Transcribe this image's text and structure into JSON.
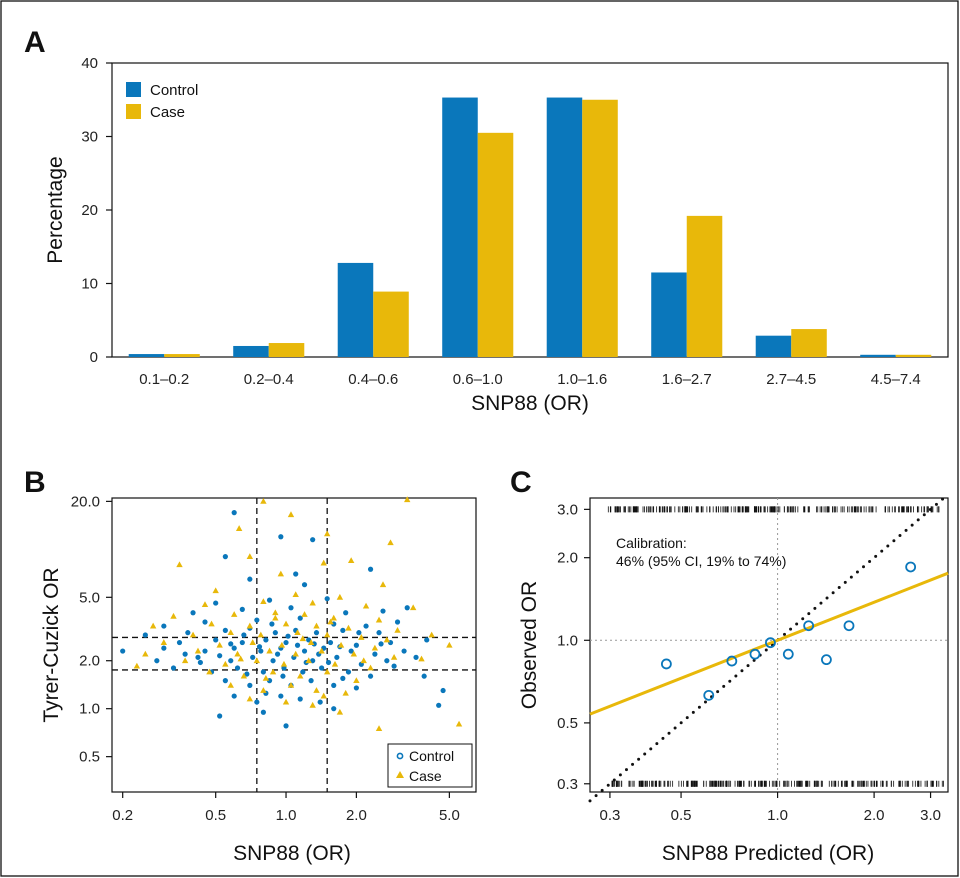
{
  "colors": {
    "control": "#0a77bb",
    "case": "#e8b80a"
  },
  "chart_data": [
    {
      "panel": "A",
      "type": "bar",
      "categories": [
        "0.1–0.2",
        "0.2–0.4",
        "0.4–0.6",
        "0.6–1.0",
        "1.0–1.6",
        "1.6–2.7",
        "2.7–4.5",
        "4.5–7.4"
      ],
      "series": [
        {
          "name": "Control",
          "values": [
            0.4,
            1.5,
            12.8,
            35.3,
            35.3,
            11.5,
            2.9,
            0.3
          ]
        },
        {
          "name": "Case",
          "values": [
            0.4,
            1.9,
            8.9,
            30.5,
            35.0,
            19.2,
            3.8,
            0.3
          ]
        }
      ],
      "xlabel": "SNP88 (OR)",
      "ylabel": "Percentage",
      "ylim": [
        0,
        40
      ],
      "yticks": [
        "0",
        "10",
        "20",
        "30",
        "40"
      ],
      "legend": "top-left"
    },
    {
      "panel": "B",
      "type": "scatter",
      "xlabel": "SNP88 (OR)",
      "ylabel": "Tyrer-Cuzick OR",
      "x_scale": "log",
      "y_scale": "log",
      "xlim": [
        0.18,
        6.5
      ],
      "ylim": [
        0.3,
        21
      ],
      "xticks": [
        "0.2",
        "0.5",
        "1.0",
        "2.0",
        "5.0"
      ],
      "yticks": [
        "0.5",
        "1.0",
        "2.0",
        "5.0",
        "20.0"
      ],
      "xtick_values": [
        0.2,
        0.5,
        1.0,
        2.0,
        5.0
      ],
      "ytick_values": [
        0.5,
        1.0,
        2.0,
        5.0,
        20.0
      ],
      "reference_lines": {
        "x": [
          0.75,
          1.5
        ],
        "y": [
          1.75,
          2.8
        ]
      },
      "series": [
        {
          "name": "Control",
          "marker": "circle",
          "points": [
            [
              0.6,
              17.0
            ],
            [
              0.95,
              12.0
            ],
            [
              1.3,
              11.5
            ],
            [
              0.55,
              9.0
            ],
            [
              1.1,
              7.0
            ],
            [
              2.3,
              7.5
            ],
            [
              0.7,
              6.5
            ],
            [
              1.2,
              6.0
            ],
            [
              3.3,
              4.3
            ],
            [
              0.5,
              4.6
            ],
            [
              0.85,
              4.8
            ],
            [
              1.5,
              4.9
            ],
            [
              0.4,
              4.0
            ],
            [
              0.65,
              4.2
            ],
            [
              1.05,
              4.3
            ],
            [
              1.8,
              4.0
            ],
            [
              2.6,
              4.1
            ],
            [
              0.3,
              3.3
            ],
            [
              0.45,
              3.5
            ],
            [
              0.75,
              3.6
            ],
            [
              1.15,
              3.7
            ],
            [
              1.6,
              3.4
            ],
            [
              2.2,
              3.3
            ],
            [
              3.0,
              3.5
            ],
            [
              0.25,
              2.9
            ],
            [
              0.38,
              3.0
            ],
            [
              0.55,
              3.1
            ],
            [
              0.7,
              3.2
            ],
            [
              0.9,
              3.0
            ],
            [
              1.1,
              3.1
            ],
            [
              1.35,
              3.0
            ],
            [
              1.75,
              3.1
            ],
            [
              2.5,
              3.0
            ],
            [
              0.35,
              2.6
            ],
            [
              0.5,
              2.7
            ],
            [
              0.65,
              2.6
            ],
            [
              0.82,
              2.7
            ],
            [
              1.0,
              2.6
            ],
            [
              1.25,
              2.7
            ],
            [
              1.55,
              2.6
            ],
            [
              2.0,
              2.5
            ],
            [
              2.8,
              2.6
            ],
            [
              4.0,
              2.7
            ],
            [
              0.2,
              2.3
            ],
            [
              0.3,
              2.4
            ],
            [
              0.45,
              2.3
            ],
            [
              0.6,
              2.4
            ],
            [
              0.78,
              2.3
            ],
            [
              0.95,
              2.4
            ],
            [
              1.2,
              2.3
            ],
            [
              1.45,
              2.4
            ],
            [
              1.9,
              2.3
            ],
            [
              2.4,
              2.2
            ],
            [
              3.2,
              2.3
            ],
            [
              0.28,
              2.0
            ],
            [
              0.42,
              2.1
            ],
            [
              0.58,
              2.0
            ],
            [
              0.72,
              2.1
            ],
            [
              0.88,
              2.0
            ],
            [
              1.08,
              2.1
            ],
            [
              1.3,
              2.0
            ],
            [
              1.65,
              2.1
            ],
            [
              2.1,
              1.9
            ],
            [
              2.7,
              2.0
            ],
            [
              3.6,
              2.1
            ],
            [
              0.33,
              1.8
            ],
            [
              0.48,
              1.7
            ],
            [
              0.62,
              1.8
            ],
            [
              0.8,
              1.7
            ],
            [
              0.98,
              1.8
            ],
            [
              1.18,
              1.7
            ],
            [
              1.42,
              1.8
            ],
            [
              1.85,
              1.7
            ],
            [
              2.3,
              1.6
            ],
            [
              0.55,
              1.5
            ],
            [
              0.7,
              1.4
            ],
            [
              0.85,
              1.5
            ],
            [
              1.05,
              1.4
            ],
            [
              1.28,
              1.5
            ],
            [
              1.6,
              1.4
            ],
            [
              2.0,
              1.35
            ],
            [
              0.6,
              1.2
            ],
            [
              0.75,
              1.1
            ],
            [
              0.95,
              1.2
            ],
            [
              1.15,
              1.15
            ],
            [
              1.4,
              1.1
            ],
            [
              0.52,
              0.9
            ],
            [
              0.8,
              0.95
            ],
            [
              1.0,
              0.78
            ],
            [
              1.6,
              1.0
            ],
            [
              4.5,
              1.05
            ],
            [
              4.7,
              1.3
            ],
            [
              3.9,
              1.6
            ],
            [
              0.66,
              2.9
            ],
            [
              1.02,
              2.85
            ],
            [
              1.7,
              2.45
            ],
            [
              0.92,
              2.2
            ],
            [
              1.22,
              1.95
            ],
            [
              0.58,
              2.55
            ],
            [
              0.87,
              3.4
            ],
            [
              1.38,
              2.2
            ],
            [
              2.9,
              1.85
            ],
            [
              0.43,
              1.95
            ],
            [
              0.37,
              2.2
            ],
            [
              2.05,
              3.0
            ],
            [
              1.12,
              2.5
            ],
            [
              0.77,
              2.45
            ],
            [
              0.52,
              2.15
            ],
            [
              1.52,
              1.95
            ],
            [
              0.97,
              1.6
            ],
            [
              0.68,
              1.65
            ],
            [
              1.32,
              2.55
            ],
            [
              1.75,
              1.55
            ],
            [
              2.55,
              2.55
            ],
            [
              0.82,
              1.25
            ]
          ]
        },
        {
          "name": "Case",
          "marker": "triangle",
          "points": [
            [
              3.3,
              20.5
            ],
            [
              0.8,
              20.0
            ],
            [
              1.05,
              16.5
            ],
            [
              0.63,
              13.5
            ],
            [
              1.5,
              12.5
            ],
            [
              2.8,
              11.0
            ],
            [
              0.7,
              9.0
            ],
            [
              1.9,
              8.5
            ],
            [
              0.35,
              8.0
            ],
            [
              1.45,
              8.2
            ],
            [
              0.95,
              7.0
            ],
            [
              2.6,
              6.0
            ],
            [
              0.5,
              5.5
            ],
            [
              1.1,
              5.2
            ],
            [
              1.7,
              5.0
            ],
            [
              0.45,
              4.5
            ],
            [
              0.8,
              4.7
            ],
            [
              1.3,
              4.6
            ],
            [
              2.2,
              4.4
            ],
            [
              3.5,
              4.3
            ],
            [
              0.33,
              3.8
            ],
            [
              0.6,
              3.9
            ],
            [
              0.9,
              4.0
            ],
            [
              1.2,
              3.9
            ],
            [
              1.6,
              3.7
            ],
            [
              2.5,
              3.6
            ],
            [
              0.27,
              3.3
            ],
            [
              0.48,
              3.4
            ],
            [
              0.7,
              3.3
            ],
            [
              1.0,
              3.4
            ],
            [
              1.35,
              3.3
            ],
            [
              1.85,
              3.2
            ],
            [
              3.0,
              3.1
            ],
            [
              0.4,
              2.9
            ],
            [
              0.58,
              3.0
            ],
            [
              0.78,
              2.9
            ],
            [
              1.12,
              3.0
            ],
            [
              1.5,
              2.9
            ],
            [
              2.1,
              2.8
            ],
            [
              4.2,
              2.9
            ],
            [
              0.3,
              2.6
            ],
            [
              0.52,
              2.5
            ],
            [
              0.72,
              2.6
            ],
            [
              0.96,
              2.5
            ],
            [
              1.28,
              2.6
            ],
            [
              1.72,
              2.5
            ],
            [
              2.4,
              2.4
            ],
            [
              5.0,
              2.5
            ],
            [
              0.25,
              2.2
            ],
            [
              0.42,
              2.3
            ],
            [
              0.62,
              2.2
            ],
            [
              0.85,
              2.3
            ],
            [
              1.1,
              2.2
            ],
            [
              1.42,
              2.3
            ],
            [
              1.95,
              2.2
            ],
            [
              2.9,
              2.1
            ],
            [
              0.37,
              2.0
            ],
            [
              0.55,
              1.9
            ],
            [
              0.75,
              2.0
            ],
            [
              0.98,
              1.9
            ],
            [
              1.25,
              2.0
            ],
            [
              1.62,
              1.9
            ],
            [
              2.3,
              1.8
            ],
            [
              0.47,
              1.7
            ],
            [
              0.66,
              1.6
            ],
            [
              0.88,
              1.7
            ],
            [
              1.15,
              1.6
            ],
            [
              1.5,
              1.7
            ],
            [
              2.0,
              1.5
            ],
            [
              0.58,
              1.4
            ],
            [
              0.8,
              1.3
            ],
            [
              1.05,
              1.4
            ],
            [
              1.35,
              1.3
            ],
            [
              1.8,
              1.25
            ],
            [
              0.7,
              1.15
            ],
            [
              1.0,
              1.1
            ],
            [
              1.3,
              1.05
            ],
            [
              1.7,
              0.95
            ],
            [
              2.5,
              0.75
            ],
            [
              5.5,
              0.8
            ],
            [
              1.45,
              1.2
            ],
            [
              0.23,
              1.85
            ],
            [
              3.8,
              2.05
            ],
            [
              2.7,
              2.7
            ],
            [
              0.9,
              3.7
            ],
            [
              1.18,
              2.75
            ],
            [
              0.64,
              2.05
            ],
            [
              1.55,
              3.5
            ],
            [
              0.82,
              1.55
            ],
            [
              2.15,
              2.0
            ]
          ]
        }
      ],
      "legend": "bottom-right"
    },
    {
      "panel": "C",
      "type": "scatter",
      "xlabel": "SNP88 Predicted (OR)",
      "ylabel": "Observed OR",
      "x_scale": "log",
      "y_scale": "log",
      "xlim": [
        0.26,
        3.4
      ],
      "ylim": [
        0.28,
        3.3
      ],
      "xticks": [
        "0.3",
        "0.5",
        "1.0",
        "2.0",
        "3.0"
      ],
      "yticks": [
        "0.3",
        "0.5",
        "1.0",
        "2.0",
        "3.0"
      ],
      "xtick_values": [
        0.3,
        0.5,
        1.0,
        2.0,
        3.0
      ],
      "ytick_values": [
        0.3,
        0.5,
        1.0,
        2.0,
        3.0
      ],
      "annotation": [
        "Calibration:",
        "46% (95% CI, 19% to 74%)"
      ],
      "points": [
        [
          0.45,
          0.82
        ],
        [
          0.61,
          0.63
        ],
        [
          0.72,
          0.84
        ],
        [
          0.85,
          0.89
        ],
        [
          0.95,
          0.98
        ],
        [
          1.08,
          0.89
        ],
        [
          1.25,
          1.13
        ],
        [
          1.42,
          0.85
        ],
        [
          1.67,
          1.13
        ],
        [
          2.6,
          1.85
        ]
      ],
      "calibration_line": {
        "slope": 0.46,
        "intercept_at_1": 1.0
      },
      "identity_line": true,
      "reference_lines": {
        "x": [
          1.0
        ],
        "y": [
          1.0
        ]
      }
    }
  ],
  "panels": {
    "a": {
      "letter": "A",
      "legend": [
        "Control",
        "Case"
      ]
    },
    "b": {
      "letter": "B",
      "legend": [
        "Control",
        "Case"
      ]
    },
    "c": {
      "letter": "C"
    }
  }
}
